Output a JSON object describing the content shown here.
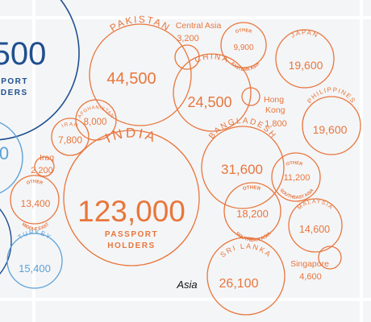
{
  "colors": {
    "orange": "#e8763c",
    "darkblue": "#1f4f8f",
    "lightblue": "#5aa2d8",
    "grid": "#ffffff",
    "background": "#f4f5f7"
  },
  "region_label": "Asia",
  "left_cut": {
    "big_number": "500",
    "big_sub1": "SPORT",
    "big_sub2": "LDERS",
    "blue_number": "0",
    "turkey_label": "TURKEY",
    "turkey_value": "15,400"
  },
  "bubbles": {
    "india": {
      "label": "INDIA",
      "value": "123,000",
      "sub1": "PASSPORT",
      "sub2": "HOLDERS"
    },
    "pakistan": {
      "label": "PAKISTAN",
      "value": "44,500"
    },
    "china": {
      "label": "CHINA",
      "value": "24,500"
    },
    "bangladesh": {
      "label": "BANGLADESH",
      "value": "31,600"
    },
    "japan": {
      "label": "JAPAN",
      "value": "19,600"
    },
    "philippines": {
      "label": "PHILIPPINES",
      "value": "19,600"
    },
    "other_eastern_asia": {
      "label_top": "OTHER",
      "label_bottom": "EASTERN ASIA",
      "value": "9,900"
    },
    "other_southern_asia": {
      "label_top": "OTHER",
      "label_bottom": "SOUTHERN ASIA",
      "value": "18,200"
    },
    "other_southeast_asia": {
      "label_top": "OTHER",
      "label_bottom": "SOUTHEAST ASIA",
      "value": "11,200"
    },
    "sri_lanka": {
      "label": "SRI LANKA",
      "value": "26,100"
    },
    "malaysia": {
      "label": "MALAYSIA",
      "value": "14,600"
    },
    "afghanistan": {
      "label": "AFGHANISTAN",
      "value": "8,000"
    },
    "iran": {
      "label": "IRAN",
      "value": "7,800"
    },
    "other_middle_east": {
      "label_top": "OTHER",
      "label_bottom": "MIDDLE EAST",
      "value": "13,400"
    },
    "central_asia": {
      "label": "Central Asia",
      "value": "3,200"
    },
    "hong_kong": {
      "label1": "Hong",
      "label2": "Kong",
      "value": "1,800"
    },
    "iraq": {
      "label": "Iraq",
      "value": "2,200"
    },
    "singapore": {
      "label": "Singapore",
      "value": "4,600"
    }
  }
}
